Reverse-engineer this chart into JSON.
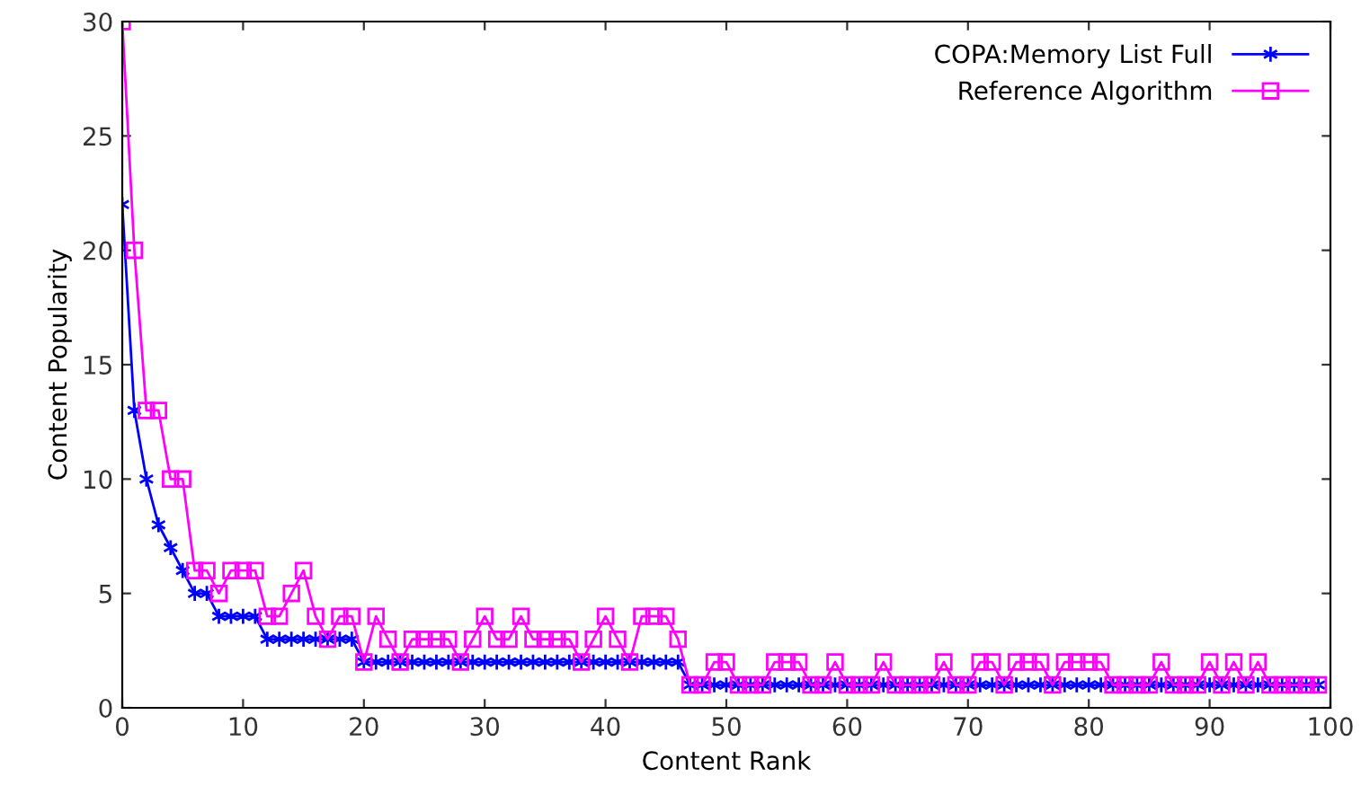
{
  "chart_data": {
    "type": "line",
    "xlabel": "Content Rank",
    "ylabel": "Content Popularity",
    "x": [
      0,
      1,
      2,
      3,
      4,
      5,
      6,
      7,
      8,
      9,
      10,
      11,
      12,
      13,
      14,
      15,
      16,
      17,
      18,
      19,
      20,
      21,
      22,
      23,
      24,
      25,
      26,
      27,
      28,
      29,
      30,
      31,
      32,
      33,
      34,
      35,
      36,
      37,
      38,
      39,
      40,
      41,
      42,
      43,
      44,
      45,
      46,
      47,
      48,
      49,
      50,
      51,
      52,
      53,
      54,
      55,
      56,
      57,
      58,
      59,
      60,
      61,
      62,
      63,
      64,
      65,
      66,
      67,
      68,
      69,
      70,
      71,
      72,
      73,
      74,
      75,
      76,
      77,
      78,
      79,
      80,
      81,
      82,
      83,
      84,
      85,
      86,
      87,
      88,
      89,
      90,
      91,
      92,
      93,
      94,
      95,
      96,
      97,
      98,
      99
    ],
    "series": [
      {
        "name": "COPA:Memory List Full",
        "color": "#0000ff",
        "marker": "cross",
        "values": [
          22,
          13,
          10,
          8,
          7,
          6,
          5,
          5,
          4,
          4,
          4,
          4,
          3,
          3,
          3,
          3,
          3,
          3,
          3,
          3,
          2,
          2,
          2,
          2,
          2,
          2,
          2,
          2,
          2,
          2,
          2,
          2,
          2,
          2,
          2,
          2,
          2,
          2,
          2,
          2,
          2,
          2,
          2,
          2,
          2,
          2,
          2,
          1,
          1,
          1,
          1,
          1,
          1,
          1,
          1,
          1,
          1,
          1,
          1,
          1,
          1,
          1,
          1,
          1,
          1,
          1,
          1,
          1,
          1,
          1,
          1,
          1,
          1,
          1,
          1,
          1,
          1,
          1,
          1,
          1,
          1,
          1,
          1,
          1,
          1,
          1,
          1,
          1,
          1,
          1,
          1,
          1,
          1,
          1,
          1,
          1,
          1,
          1,
          1,
          1
        ]
      },
      {
        "name": "Reference Algorithm",
        "color": "#ff00ff",
        "marker": "square",
        "values": [
          30,
          20,
          13,
          13,
          10,
          10,
          6,
          6,
          5,
          6,
          6,
          6,
          4,
          4,
          5,
          6,
          4,
          3,
          4,
          4,
          2,
          4,
          3,
          2,
          3,
          3,
          3,
          3,
          2,
          3,
          4,
          3,
          3,
          4,
          3,
          3,
          3,
          3,
          2,
          3,
          4,
          3,
          2,
          4,
          4,
          4,
          3,
          1,
          1,
          2,
          2,
          1,
          1,
          1,
          2,
          2,
          2,
          1,
          1,
          2,
          1,
          1,
          1,
          2,
          1,
          1,
          1,
          1,
          2,
          1,
          1,
          2,
          2,
          1,
          2,
          2,
          2,
          1,
          2,
          2,
          2,
          2,
          1,
          1,
          1,
          1,
          2,
          1,
          1,
          1,
          2,
          1,
          2,
          1,
          2,
          1,
          1,
          1,
          1,
          1
        ]
      }
    ],
    "xlim": [
      0,
      100
    ],
    "xticks": [
      0,
      10,
      20,
      30,
      40,
      50,
      60,
      70,
      80,
      90,
      100
    ],
    "ylim": [
      0,
      30
    ],
    "yticks": [
      0,
      5,
      10,
      15,
      20,
      25,
      30
    ],
    "legend": "top right",
    "grid": false
  }
}
